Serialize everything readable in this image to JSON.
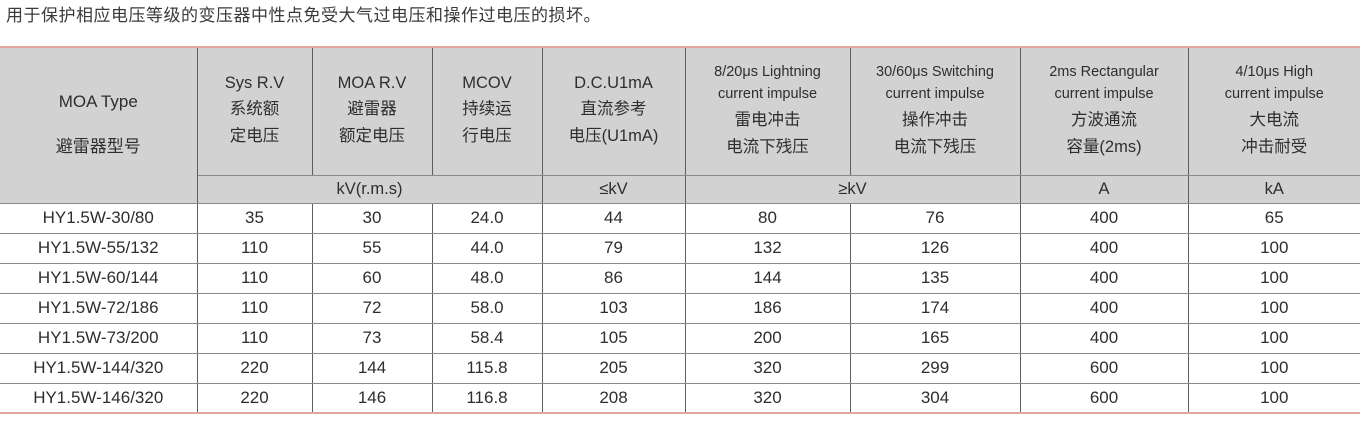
{
  "page": {
    "description": "用于保护相应电压等级的变压器中性点免受大气过电压和操作过电压的损坏。"
  },
  "table": {
    "headers": [
      {
        "id": "moa-type",
        "en": "MOA  Type",
        "zh": "避雷器型号"
      },
      {
        "id": "sys-rated-voltage",
        "en": "Sys R.V",
        "zh": "系统额\n定电压"
      },
      {
        "id": "moa-rated-voltage",
        "en": "MOA R.V",
        "zh": "避雷器\n额定电压"
      },
      {
        "id": "mcov",
        "en": "MCOV",
        "zh": "持续运\n行电压"
      },
      {
        "id": "dc-u1ma",
        "en": "D.C.U1mA",
        "zh": "直流参考\n电压(U1mA)"
      },
      {
        "id": "lightning-impulse",
        "en": "8/20μs Lightning\ncurrent impulse",
        "zh": "雷电冲击\n电流下残压"
      },
      {
        "id": "switching-impulse",
        "en": "30/60μs Switching\ncurrent impulse",
        "zh": "操作冲击\n电流下残压"
      },
      {
        "id": "rectangular-impulse",
        "en": "2ms Rectangular\ncurrent impulse",
        "zh": "方波通流\n容量(2ms)"
      },
      {
        "id": "high-current-impulse",
        "en": "4/10μs High\ncurrent impulse",
        "zh": "大电流\n冲击耐受"
      }
    ],
    "units": {
      "kv_rms": "kV(r.m.s)",
      "le_kv": "≤kV",
      "ge_kv": "≥kV",
      "amp": "A",
      "kilo_amp": "kA"
    },
    "rows": [
      [
        "HY1.5W-30/80",
        "35",
        "30",
        "24.0",
        "44",
        "80",
        "76",
        "400",
        "65"
      ],
      [
        "HY1.5W-55/132",
        "110",
        "55",
        "44.0",
        "79",
        "132",
        "126",
        "400",
        "100"
      ],
      [
        "HY1.5W-60/144",
        "110",
        "60",
        "48.0",
        "86",
        "144",
        "135",
        "400",
        "100"
      ],
      [
        "HY1.5W-72/186",
        "110",
        "72",
        "58.0",
        "103",
        "186",
        "174",
        "400",
        "100"
      ],
      [
        "HY1.5W-73/200",
        "110",
        "73",
        "58.4",
        "105",
        "200",
        "165",
        "400",
        "100"
      ],
      [
        "HY1.5W-144/320",
        "220",
        "144",
        "115.8",
        "205",
        "320",
        "299",
        "600",
        "100"
      ],
      [
        "HY1.5W-146/320",
        "220",
        "146",
        "116.8",
        "208",
        "320",
        "304",
        "600",
        "100"
      ]
    ],
    "colors": {
      "header_bg": "#d2d2d2",
      "accent_border": "#e2a69e",
      "grid_vertical": "#5e5e5e",
      "grid_horizontal": "#8a8a8a",
      "text": "#2e2e2e"
    }
  }
}
